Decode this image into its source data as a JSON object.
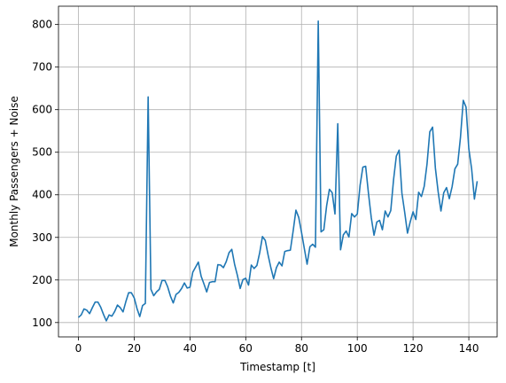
{
  "chart_data": {
    "type": "line",
    "title": "",
    "xlabel": "Timestamp [t]",
    "ylabel": "Monthly Passengers + Noise",
    "xlim": [
      -7.15,
      150.15
    ],
    "ylim": [
      66.3,
      843.0
    ],
    "xticks": [
      0,
      20,
      40,
      60,
      80,
      100,
      120,
      140
    ],
    "yticks": [
      100,
      200,
      300,
      400,
      500,
      600,
      700,
      800
    ],
    "grid": true,
    "legend": "none",
    "series": [
      {
        "color": "#1f77b4",
        "x": [
          0,
          1,
          2,
          3,
          4,
          5,
          6,
          7,
          8,
          9,
          10,
          11,
          12,
          13,
          14,
          15,
          16,
          17,
          18,
          19,
          20,
          21,
          22,
          23,
          24,
          25,
          26,
          27,
          28,
          29,
          30,
          31,
          32,
          33,
          34,
          35,
          36,
          37,
          38,
          39,
          40,
          41,
          42,
          43,
          44,
          45,
          46,
          47,
          48,
          49,
          50,
          51,
          52,
          53,
          54,
          55,
          56,
          57,
          58,
          59,
          60,
          61,
          62,
          63,
          64,
          65,
          66,
          67,
          68,
          69,
          70,
          71,
          72,
          73,
          74,
          75,
          76,
          77,
          78,
          79,
          80,
          81,
          82,
          83,
          84,
          85,
          86,
          87,
          88,
          89,
          90,
          91,
          92,
          93,
          94,
          95,
          96,
          97,
          98,
          99,
          100,
          101,
          102,
          103,
          104,
          105,
          106,
          107,
          108,
          109,
          110,
          111,
          112,
          113,
          114,
          115,
          116,
          117,
          118,
          119,
          120,
          121,
          122,
          123,
          124,
          125,
          126,
          127,
          128,
          129,
          130,
          131,
          132,
          133,
          134,
          135,
          136,
          137,
          138,
          139,
          140,
          141,
          142,
          143
        ],
        "values": [
          112,
          118,
          132,
          129,
          121,
          135,
          148,
          148,
          136,
          119,
          104,
          118,
          115,
          126,
          141,
          135,
          125,
          149,
          170,
          170,
          158,
          133,
          114,
          140,
          145,
          630,
          178,
          163,
          172,
          178,
          199,
          199,
          184,
          162,
          146,
          166,
          171,
          180,
          193,
          181,
          183,
          218,
          230,
          242,
          209,
          191,
          172,
          194,
          196,
          196,
          236,
          235,
          229,
          243,
          264,
          272,
          237,
          211,
          180,
          201,
          204,
          188,
          235,
          227,
          234,
          264,
          302,
          293,
          259,
          229,
          203,
          229,
          242,
          233,
          267,
          269,
          270,
          315,
          364,
          347,
          312,
          274,
          237,
          278,
          284,
          277,
          808,
          313,
          318,
          374,
          413,
          405,
          355,
          567,
          271,
          306,
          315,
          301,
          356,
          348,
          355,
          422,
          465,
          467,
          404,
          347,
          305,
          336,
          340,
          318,
          362,
          348,
          363,
          435,
          491,
          505,
          404,
          359,
          310,
          337,
          360,
          342,
          406,
          396,
          420,
          472,
          548,
          559,
          463,
          407,
          362,
          405,
          417,
          391,
          419,
          461,
          472,
          535,
          622,
          606,
          508,
          461,
          390,
          432
        ]
      }
    ]
  }
}
